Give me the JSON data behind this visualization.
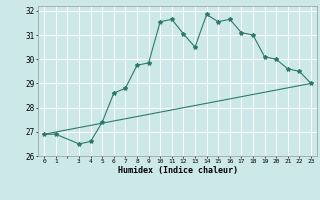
{
  "xlabel": "Humidex (Indice chaleur)",
  "background_color": "#cde8e8",
  "grid_color": "#ffffff",
  "line_color": "#2d7a6a",
  "xlim": [
    -0.5,
    23.5
  ],
  "ylim": [
    26,
    32.2
  ],
  "yticks": [
    26,
    27,
    28,
    29,
    30,
    31,
    32
  ],
  "xticks": [
    0,
    1,
    2,
    3,
    4,
    5,
    6,
    7,
    8,
    9,
    10,
    11,
    12,
    13,
    14,
    15,
    16,
    17,
    18,
    19,
    20,
    21,
    22,
    23
  ],
  "xticklabels": [
    "0",
    "1",
    "",
    "3",
    "4",
    "5",
    "6",
    "7",
    "8",
    "9",
    "10",
    "11",
    "12",
    "13",
    "14",
    "15",
    "16",
    "17",
    "18",
    "19",
    "20",
    "21",
    "22",
    "23"
  ],
  "curve1_x": [
    0,
    1,
    3,
    4,
    5,
    6,
    7,
    8,
    9,
    10,
    11,
    12,
    13,
    14,
    15,
    16,
    17,
    18,
    19,
    20,
    21,
    22,
    23
  ],
  "curve1_y": [
    26.9,
    26.9,
    26.5,
    26.6,
    27.4,
    28.6,
    28.8,
    29.75,
    29.85,
    31.55,
    31.65,
    31.05,
    30.5,
    31.85,
    31.55,
    31.65,
    31.1,
    31.0,
    30.1,
    30.0,
    29.6,
    29.5,
    29.0
  ],
  "curve2_x": [
    0,
    23
  ],
  "curve2_y": [
    26.9,
    29.0
  ]
}
